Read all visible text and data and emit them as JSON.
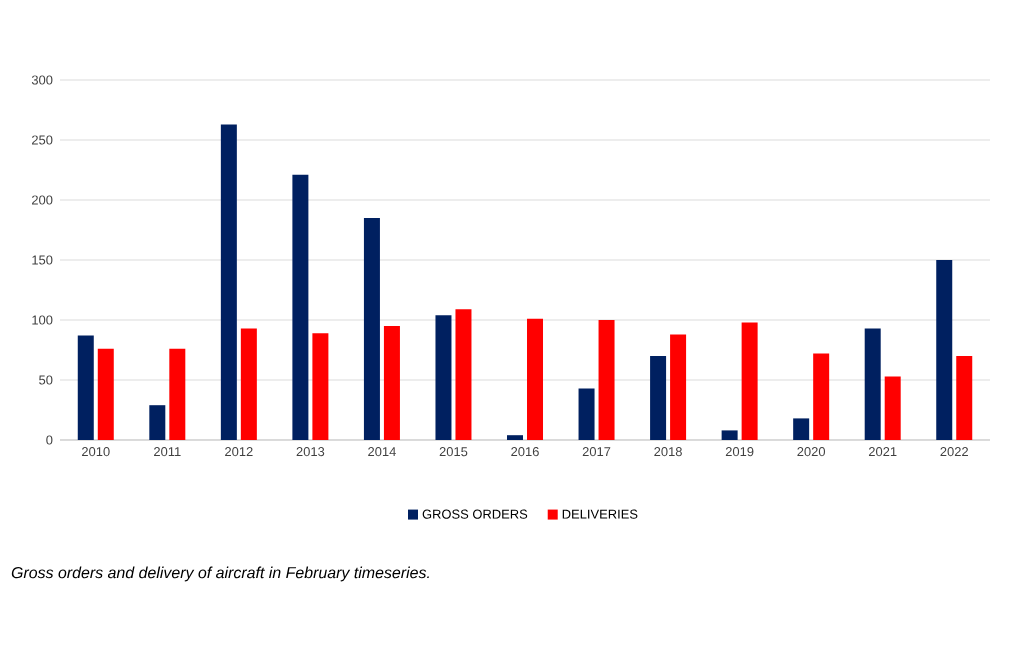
{
  "chart_data": {
    "type": "bar",
    "categories": [
      "2010",
      "2011",
      "2012",
      "2013",
      "2014",
      "2015",
      "2016",
      "2017",
      "2018",
      "2019",
      "2020",
      "2021",
      "2022"
    ],
    "series": [
      {
        "name": "GROSS ORDERS",
        "color": "#002060",
        "values": [
          87,
          29,
          263,
          221,
          185,
          104,
          4,
          43,
          70,
          8,
          18,
          93,
          150
        ]
      },
      {
        "name": "DELIVERIES",
        "color": "#ff0000",
        "values": [
          76,
          76,
          93,
          89,
          95,
          109,
          101,
          100,
          88,
          98,
          72,
          53,
          70
        ]
      }
    ],
    "ylim": [
      0,
      300
    ],
    "yticks": [
      0,
      50,
      100,
      150,
      200,
      250,
      300
    ],
    "grid": "y",
    "legend": "bottom",
    "annotations": [
      "Gross orders and delivery of aircraft in February timeseries."
    ]
  }
}
